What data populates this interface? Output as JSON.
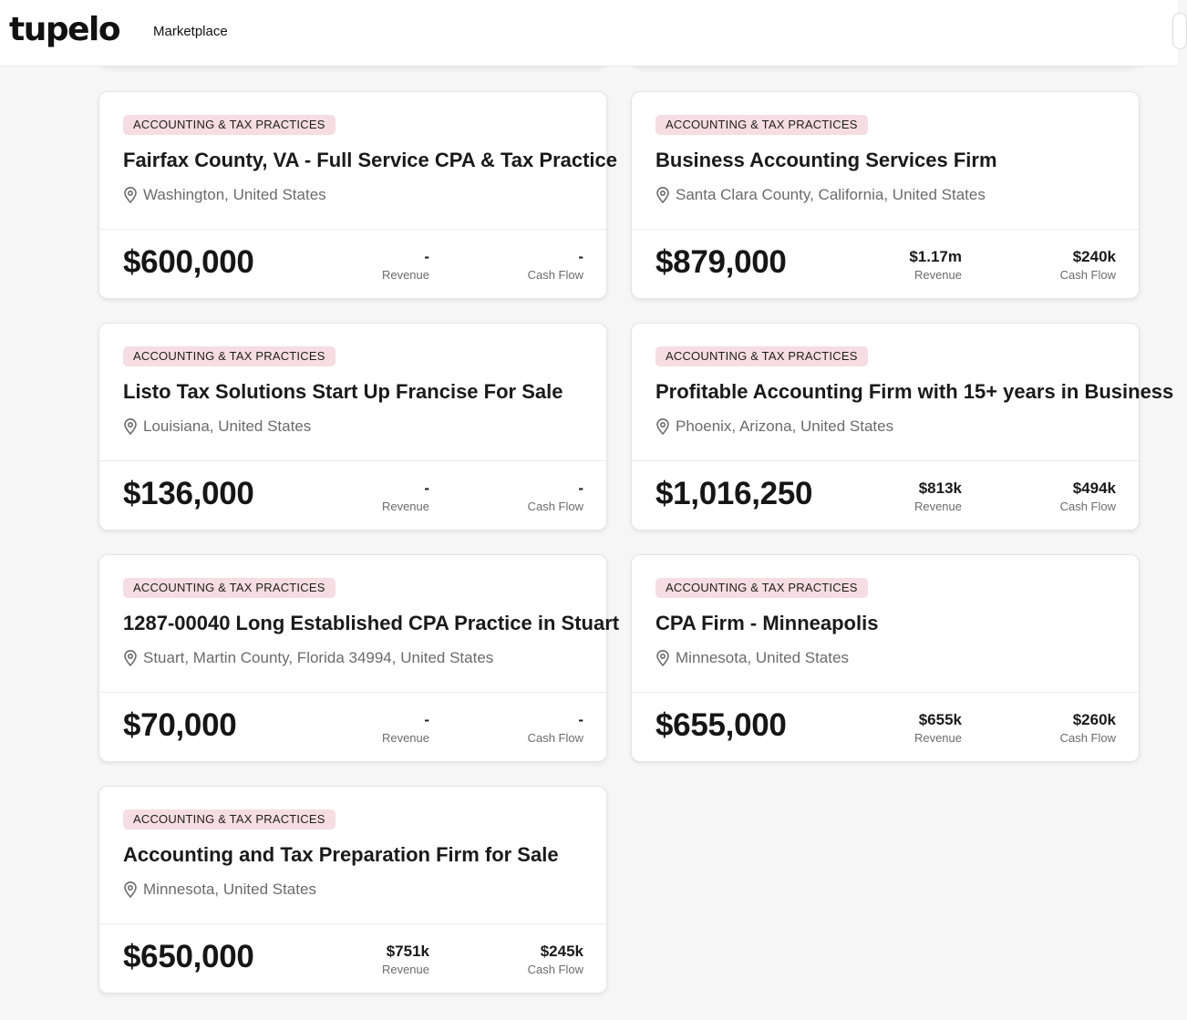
{
  "header": {
    "logo": "tupelo",
    "nav_link": "Marketplace"
  },
  "listings": [
    {
      "category": "ACCOUNTING & TAX PRACTICES",
      "title": "Fairfax County, VA - Full Service CPA & Tax Practice",
      "location": "Washington, United States",
      "price": "$600,000",
      "revenue": "-",
      "revenue_label": "Revenue",
      "cash_flow": "-",
      "cash_flow_label": "Cash Flow"
    },
    {
      "category": "ACCOUNTING & TAX PRACTICES",
      "title": "Business Accounting Services Firm",
      "location": "Santa Clara County, California, United States",
      "price": "$879,000",
      "revenue": "$1.17m",
      "revenue_label": "Revenue",
      "cash_flow": "$240k",
      "cash_flow_label": "Cash Flow"
    },
    {
      "category": "ACCOUNTING & TAX PRACTICES",
      "title": "Listo Tax Solutions Start Up Francise For Sale",
      "location": "Louisiana, United States",
      "price": "$136,000",
      "revenue": "-",
      "revenue_label": "Revenue",
      "cash_flow": "-",
      "cash_flow_label": "Cash Flow"
    },
    {
      "category": "ACCOUNTING & TAX PRACTICES",
      "title": "Profitable Accounting Firm with 15+ years in Business",
      "location": "Phoenix, Arizona, United States",
      "price": "$1,016,250",
      "revenue": "$813k",
      "revenue_label": "Revenue",
      "cash_flow": "$494k",
      "cash_flow_label": "Cash Flow"
    },
    {
      "category": "ACCOUNTING & TAX PRACTICES",
      "title": "1287-00040 Long Established CPA Practice in Stuart",
      "location": "Stuart, Martin County, Florida 34994, United States",
      "price": "$70,000",
      "revenue": "-",
      "revenue_label": "Revenue",
      "cash_flow": "-",
      "cash_flow_label": "Cash Flow"
    },
    {
      "category": "ACCOUNTING & TAX PRACTICES",
      "title": "CPA Firm - Minneapolis",
      "location": "Minnesota, United States",
      "price": "$655,000",
      "revenue": "$655k",
      "revenue_label": "Revenue",
      "cash_flow": "$260k",
      "cash_flow_label": "Cash Flow"
    },
    {
      "category": "ACCOUNTING & TAX PRACTICES",
      "title": "Accounting and Tax Preparation Firm for Sale",
      "location": "Minnesota, United States",
      "price": "$650,000",
      "revenue": "$751k",
      "revenue_label": "Revenue",
      "cash_flow": "$245k",
      "cash_flow_label": "Cash Flow"
    }
  ]
}
